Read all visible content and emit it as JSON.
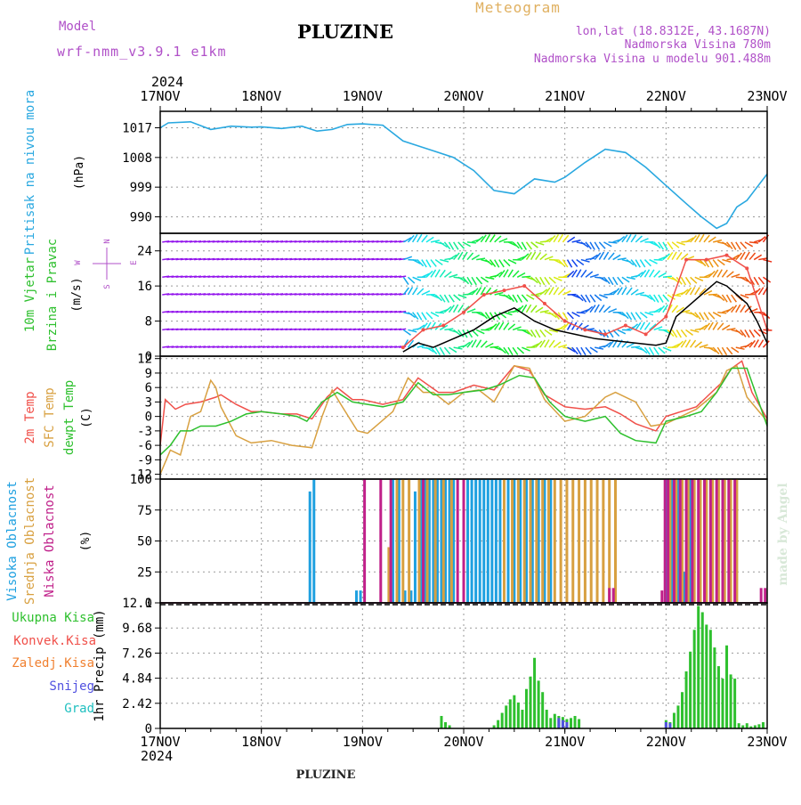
{
  "header": {
    "model_label": "Model",
    "model_name": "wrf-nmm_v3.9.1 e1km",
    "station_title": "PLUZINE",
    "product_title": "Meteogram",
    "coords": "lon,lat (18.8312E, 43.1687N)",
    "altitude": "Nadmorska Visina 780m",
    "model_altitude": "Nadmorska Visina u modelu 901.488m",
    "year_top": "2024",
    "year_bottom": "2024",
    "footer_station": "PLUZINE",
    "watermark": "made by Angel"
  },
  "colors": {
    "pressure": "#29a8e0",
    "temp2m": "#f0504a",
    "sfc_temp": "#d8a040",
    "dewpoint": "#2ec02e",
    "high_cloud": "#1ea0e0",
    "mid_cloud": "#d8a040",
    "low_cloud": "#c0208a",
    "precip_total": "#2ec02e",
    "precip_conv": "#f0504a",
    "precip_frozen": "#f08030",
    "snow": "#5050e0",
    "hail": "#20c0c0",
    "header_purple": "#b050c8",
    "meteogram_gold": "#e0b060"
  },
  "time_axis": {
    "tick_labels": [
      "17NOV",
      "18NOV",
      "19NOV",
      "20NOV",
      "21NOV",
      "22NOV",
      "23NOV"
    ],
    "units": "days since 17NOV 2024 00Z",
    "range": [
      0,
      6
    ]
  },
  "chart_data": [
    {
      "id": "pressure",
      "type": "line",
      "ylabel_lines": [
        "Pritisak na nivou mora",
        "(hPa)"
      ],
      "y_ticks": [
        "1017",
        "1008",
        "999",
        "990"
      ],
      "ylim": [
        985,
        1022
      ],
      "series": [
        {
          "color_key": "pressure",
          "x": [
            0,
            0.08,
            0.3,
            0.5,
            0.7,
            0.9,
            1.0,
            1.2,
            1.4,
            1.55,
            1.7,
            1.85,
            2.0,
            2.2,
            2.4,
            2.5,
            2.7,
            2.9,
            3.1,
            3.3,
            3.5,
            3.7,
            3.9,
            4.0,
            4.2,
            4.4,
            4.6,
            4.8,
            5.0,
            5.2,
            5.35,
            5.5,
            5.6,
            5.7,
            5.8,
            5.9,
            6.0
          ],
          "values": [
            1017,
            1018.5,
            1018.8,
            1016.5,
            1017.5,
            1017.2,
            1017.3,
            1016.8,
            1017.5,
            1016.0,
            1016.5,
            1018.0,
            1018.2,
            1017.8,
            1013.0,
            1012.0,
            1010.0,
            1008.0,
            1004.0,
            998.0,
            997.0,
            1001.5,
            1000.5,
            1002.0,
            1006.5,
            1010.5,
            1009.5,
            1005.0,
            999.5,
            994.0,
            990.0,
            986.5,
            988.0,
            993.0,
            995.0,
            999.0,
            1003.0
          ]
        }
      ]
    },
    {
      "id": "wind",
      "type": "line",
      "ylabel_lines": [
        "10m Vjetar",
        "Brzina i Pravac",
        "(m/s)"
      ],
      "compass": {
        "north": "N",
        "east": "E",
        "west": "W",
        "south": "S"
      },
      "y_ticks": [
        "24",
        "16",
        "8",
        "0"
      ],
      "ylim": [
        0,
        28
      ],
      "barb_rows": [
        2,
        6,
        10,
        14,
        18,
        22,
        26
      ],
      "series": [
        {
          "name": "speed",
          "color": "#000000",
          "x": [
            2.4,
            2.55,
            2.7,
            2.9,
            3.1,
            3.3,
            3.5,
            3.7,
            3.9,
            4.1,
            4.3,
            4.5,
            4.7,
            4.9,
            5.0,
            5.1,
            5.3,
            5.5,
            5.6,
            5.7,
            5.8,
            5.9,
            6.0
          ],
          "values": [
            1,
            3,
            2,
            4,
            6,
            9,
            11,
            8,
            6,
            5,
            4,
            3.5,
            3,
            2.5,
            3,
            9,
            13,
            17,
            16,
            14,
            12,
            8,
            3
          ]
        },
        {
          "name": "gust",
          "color": "#f0504a",
          "x": [
            2.4,
            2.6,
            2.8,
            3.0,
            3.2,
            3.4,
            3.6,
            3.8,
            4.0,
            4.2,
            4.4,
            4.6,
            4.8,
            5.0,
            5.2,
            5.4,
            5.6,
            5.8,
            6.0
          ],
          "values": [
            2,
            6,
            7,
            10,
            14,
            15,
            16,
            12,
            8,
            6,
            5,
            7,
            5,
            9,
            22,
            22,
            23,
            20,
            6
          ]
        }
      ]
    },
    {
      "id": "temperature",
      "type": "line",
      "ylabel_lines": [
        "2m Temp",
        "SFC Temp",
        "dewpt Temp",
        "(C)"
      ],
      "y_ticks": [
        "12",
        "9",
        "6",
        "3",
        "0",
        "-3",
        "-6",
        "-9",
        "-12"
      ],
      "ylim": [
        -13,
        12.5
      ],
      "series": [
        {
          "color_key": "temp2m",
          "x": [
            0,
            0.05,
            0.15,
            0.25,
            0.4,
            0.55,
            0.6,
            0.75,
            0.9,
            1.0,
            1.2,
            1.35,
            1.5,
            1.65,
            1.75,
            1.9,
            2.0,
            2.2,
            2.4,
            2.55,
            2.75,
            2.9,
            3.1,
            3.3,
            3.5,
            3.65,
            3.8,
            4.0,
            4.2,
            4.4,
            4.55,
            4.7,
            4.9,
            5.0,
            5.15,
            5.3,
            5.4,
            5.55,
            5.65,
            5.75,
            5.85,
            6.0
          ],
          "values": [
            -6,
            3.5,
            1.5,
            2.5,
            3,
            4,
            4.5,
            2.5,
            1,
            1,
            0.5,
            0.5,
            -0.5,
            4,
            6,
            3.5,
            3.5,
            2.5,
            3.5,
            8,
            5,
            5,
            6.5,
            5.5,
            10.5,
            9.5,
            4.5,
            2,
            1.5,
            2,
            0.5,
            -1.5,
            -3,
            0,
            1,
            2,
            4,
            7,
            10,
            11.5,
            5,
            -0.5
          ]
        },
        {
          "color_key": "sfc_temp",
          "x": [
            0,
            0.1,
            0.2,
            0.3,
            0.4,
            0.5,
            0.55,
            0.6,
            0.75,
            0.9,
            1.1,
            1.3,
            1.5,
            1.6,
            1.7,
            1.8,
            1.95,
            2.05,
            2.3,
            2.45,
            2.6,
            2.7,
            2.85,
            3.0,
            3.15,
            3.3,
            3.5,
            3.65,
            3.8,
            4.0,
            4.2,
            4.4,
            4.5,
            4.7,
            4.85,
            5.0,
            5.15,
            5.3,
            5.5,
            5.6,
            5.7,
            5.8,
            6.0
          ],
          "values": [
            -12,
            -7,
            -8,
            0,
            1,
            7.5,
            6,
            2,
            -4,
            -5.5,
            -5,
            -6,
            -6.5,
            0,
            5.5,
            2,
            -3,
            -3.5,
            1,
            8,
            5,
            5,
            2.5,
            5,
            5.5,
            3,
            10.5,
            10,
            3.5,
            -1,
            0,
            4,
            5,
            3,
            -2,
            -1.5,
            0,
            1.5,
            5,
            9.5,
            10.5,
            4,
            -1
          ]
        },
        {
          "color_key": "dewpoint",
          "x": [
            0,
            0.1,
            0.2,
            0.3,
            0.4,
            0.55,
            0.7,
            0.85,
            1.0,
            1.2,
            1.35,
            1.45,
            1.6,
            1.75,
            1.9,
            2.05,
            2.2,
            2.4,
            2.55,
            2.7,
            2.85,
            3.0,
            3.2,
            3.35,
            3.55,
            3.7,
            3.85,
            4.0,
            4.2,
            4.4,
            4.55,
            4.7,
            4.9,
            5.0,
            5.2,
            5.35,
            5.5,
            5.65,
            5.8,
            6.0
          ],
          "values": [
            -8,
            -6,
            -3,
            -3,
            -2,
            -2,
            -1,
            0.5,
            1,
            0.5,
            0,
            -1,
            3,
            5,
            3,
            2.5,
            2,
            3,
            7,
            4.5,
            4.5,
            5,
            5.5,
            6.5,
            8.5,
            8,
            3,
            0,
            -1,
            0,
            -3.5,
            -5,
            -5.5,
            -1,
            0,
            1,
            5,
            10,
            10,
            -2
          ]
        }
      ]
    },
    {
      "id": "clouds",
      "type": "bar",
      "ylabel_lines": [
        "Visoka Oblacnost",
        "Srednja Oblacnost",
        "Niska Oblacnost",
        "(%)"
      ],
      "y_ticks": [
        "100",
        "75",
        "50",
        "25",
        "0"
      ],
      "ylim": [
        0,
        100
      ],
      "series": [
        {
          "name": "Visoka Oblacnost",
          "color_key": "high_cloud",
          "x": [
            1.48,
            1.52,
            1.94,
            1.98,
            2.3,
            2.36,
            2.42,
            2.48,
            2.52,
            2.58,
            2.62,
            2.66,
            2.7,
            2.74,
            2.78,
            2.82,
            2.86,
            2.9,
            3.04,
            3.08,
            3.12,
            3.16,
            3.2,
            3.24,
            3.28,
            3.32,
            3.36,
            3.44,
            3.5,
            3.56,
            3.62,
            3.68,
            3.74,
            3.8,
            3.86,
            5.0,
            5.06,
            5.12,
            5.18,
            5.24
          ],
          "values": [
            90,
            100,
            10,
            10,
            100,
            100,
            10,
            10,
            90,
            100,
            100,
            100,
            100,
            100,
            100,
            100,
            100,
            100,
            100,
            100,
            100,
            100,
            100,
            100,
            100,
            100,
            100,
            100,
            100,
            100,
            100,
            100,
            100,
            100,
            100,
            100,
            100,
            100,
            25,
            100
          ]
        },
        {
          "name": "Srednja Oblacnost",
          "color_key": "mid_cloud",
          "x": [
            2.26,
            2.34,
            2.4,
            2.46,
            2.56,
            2.64,
            2.72,
            2.8,
            2.88,
            3.4,
            3.48,
            3.54,
            3.6,
            3.66,
            3.72,
            3.78,
            3.84,
            3.9,
            3.96,
            4.02,
            4.08,
            4.14,
            4.2,
            4.26,
            4.32,
            4.38,
            4.44,
            4.5,
            5.04,
            5.1,
            5.16,
            5.22,
            5.28,
            5.34,
            5.4,
            5.46,
            5.52,
            5.58,
            5.64,
            5.7
          ],
          "values": [
            45,
            100,
            100,
            100,
            100,
            100,
            100,
            100,
            100,
            100,
            100,
            100,
            100,
            100,
            100,
            100,
            100,
            100,
            100,
            100,
            100,
            100,
            100,
            100,
            100,
            100,
            100,
            100,
            100,
            100,
            100,
            100,
            100,
            100,
            100,
            100,
            100,
            100,
            100,
            100
          ]
        },
        {
          "name": "Niska Oblacnost",
          "color_key": "low_cloud",
          "x": [
            2.02,
            2.18,
            2.28,
            2.6,
            2.94,
            3.0,
            4.44,
            4.48,
            4.96,
            4.99,
            5.02,
            5.08,
            5.14,
            5.2,
            5.26,
            5.32,
            5.38,
            5.44,
            5.5,
            5.56,
            5.62,
            5.68,
            5.94,
            5.98
          ],
          "values": [
            100,
            100,
            100,
            100,
            100,
            100,
            12,
            12,
            10,
            100,
            100,
            100,
            100,
            100,
            100,
            100,
            100,
            100,
            100,
            100,
            100,
            100,
            12,
            12
          ]
        }
      ]
    },
    {
      "id": "precip",
      "type": "bar",
      "ylabel_lines": [
        "1hr Precip (mm)"
      ],
      "y_ticks": [
        "12.1",
        "9.68",
        "7.26",
        "4.84",
        "2.42",
        "0"
      ],
      "ylim": [
        0,
        12.1
      ],
      "legend": [
        "Ukupna Kisa",
        "Konvek.Kisa",
        "Zaledj.Kisa",
        "Snijeg",
        "Grad"
      ],
      "series": [
        {
          "name": "Ukupna Kisa",
          "color_key": "precip_total",
          "x": [
            2.78,
            2.82,
            2.86,
            3.3,
            3.34,
            3.38,
            3.42,
            3.46,
            3.5,
            3.54,
            3.58,
            3.62,
            3.66,
            3.7,
            3.74,
            3.78,
            3.82,
            3.86,
            3.9,
            3.94,
            3.98,
            4.02,
            4.06,
            4.1,
            4.14,
            5.0,
            5.04,
            5.08,
            5.12,
            5.16,
            5.2,
            5.24,
            5.28,
            5.32,
            5.36,
            5.4,
            5.44,
            5.48,
            5.52,
            5.56,
            5.6,
            5.64,
            5.68,
            5.72,
            5.76,
            5.8,
            5.84,
            5.88,
            5.92,
            5.96
          ],
          "values": [
            1.2,
            0.6,
            0.3,
            0.3,
            0.8,
            1.5,
            2.2,
            2.8,
            3.2,
            2.5,
            1.8,
            3.8,
            5.0,
            6.8,
            4.6,
            3.5,
            1.8,
            1.0,
            1.4,
            1.2,
            1.1,
            0.9,
            1.0,
            1.2,
            0.9,
            0.8,
            0.6,
            1.5,
            2.2,
            3.5,
            5.5,
            7.4,
            9.5,
            11.8,
            11.2,
            10.0,
            9.5,
            7.8,
            6.0,
            4.8,
            8.0,
            5.2,
            4.8,
            0.5,
            0.3,
            0.5,
            0.2,
            0.3,
            0.4,
            0.6
          ]
        },
        {
          "name": "Snijeg",
          "color_key": "snow",
          "x": [
            3.94,
            3.98,
            4.02,
            5.0,
            5.04
          ],
          "values": [
            1.0,
            0.8,
            0.6,
            0.6,
            0.5
          ]
        }
      ]
    }
  ]
}
